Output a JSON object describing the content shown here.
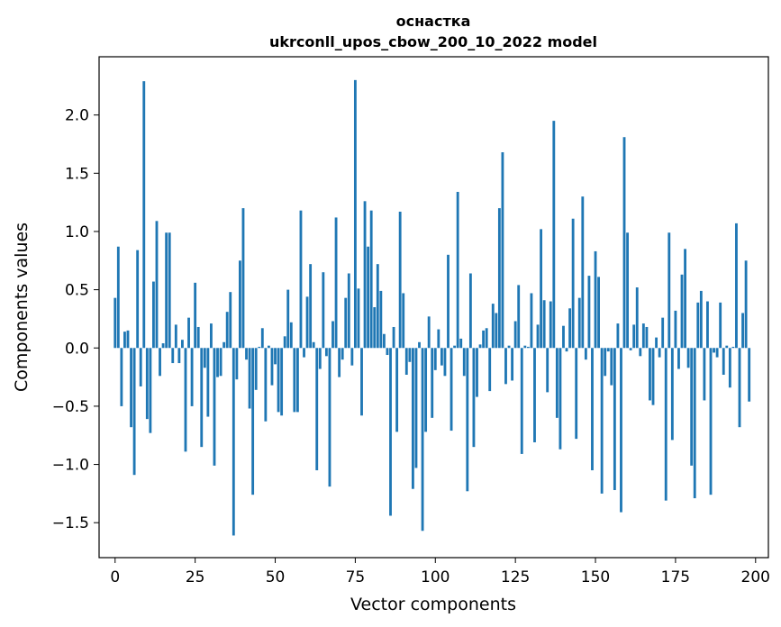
{
  "chart_data": {
    "type": "bar",
    "title": "оснастка",
    "subtitle": "ukrconll_upos_cbow_200_10_2022 model",
    "xlabel": "Vector components",
    "ylabel": "Components values",
    "xlim": [
      -5,
      204
    ],
    "ylim": [
      -1.8,
      2.5
    ],
    "xticks": [
      0,
      25,
      50,
      75,
      100,
      125,
      150,
      175,
      200
    ],
    "yticks": [
      -1.5,
      -1.0,
      -0.5,
      0.0,
      0.5,
      1.0,
      1.5,
      2.0
    ],
    "ytick_labels": [
      "−1.5",
      "−1.0",
      "−0.5",
      "0.0",
      "0.5",
      "1.0",
      "1.5",
      "2.0"
    ],
    "bar_color": "#1f77b4",
    "values": [
      0.43,
      0.87,
      -0.5,
      0.14,
      0.15,
      -0.68,
      -1.09,
      0.84,
      -0.33,
      2.29,
      -0.61,
      -0.73,
      0.57,
      1.09,
      -0.24,
      0.04,
      0.99,
      0.99,
      -0.13,
      0.2,
      -0.13,
      0.07,
      -0.89,
      0.26,
      -0.5,
      0.56,
      0.18,
      -0.85,
      -0.17,
      -0.59,
      0.21,
      -1.01,
      -0.25,
      -0.24,
      0.05,
      0.31,
      0.48,
      -1.61,
      -0.27,
      0.75,
      1.2,
      -0.1,
      -0.52,
      -1.26,
      -0.36,
      0.01,
      0.17,
      -0.63,
      0.02,
      -0.32,
      -0.14,
      -0.55,
      -0.58,
      0.1,
      0.5,
      0.22,
      -0.55,
      -0.55,
      1.18,
      -0.08,
      0.44,
      0.72,
      0.05,
      -1.05,
      -0.18,
      0.65,
      -0.07,
      -1.19,
      0.23,
      1.12,
      -0.25,
      -0.1,
      0.43,
      0.64,
      -0.15,
      2.3,
      0.51,
      -0.58,
      1.26,
      0.87,
      1.18,
      0.35,
      0.72,
      0.49,
      0.12,
      -0.06,
      -1.44,
      0.18,
      -0.72,
      1.17,
      0.47,
      -0.23,
      -0.12,
      -1.21,
      -1.03,
      0.05,
      -1.57,
      -0.72,
      0.27,
      -0.6,
      -0.19,
      0.16,
      -0.15,
      -0.24,
      0.8,
      -0.71,
      0.02,
      1.34,
      0.08,
      -0.24,
      -1.23,
      0.64,
      -0.85,
      -0.42,
      0.03,
      0.15,
      0.17,
      -0.37,
      0.38,
      0.3,
      1.2,
      1.68,
      -0.31,
      0.02,
      -0.28,
      0.23,
      0.54,
      -0.91,
      0.02,
      0.01,
      0.47,
      -0.81,
      0.2,
      1.02,
      0.41,
      -0.38,
      0.4,
      1.95,
      -0.6,
      -0.87,
      0.19,
      -0.03,
      0.34,
      1.11,
      -0.78,
      0.43,
      1.3,
      -0.1,
      0.62,
      -1.05,
      0.83,
      0.61,
      -1.25,
      -0.24,
      -0.03,
      -0.32,
      -1.22,
      0.21,
      -1.41,
      1.81,
      0.99,
      -0.02,
      0.2,
      0.52,
      -0.07,
      0.21,
      0.18,
      -0.45,
      -0.49,
      0.09,
      -0.08,
      0.26,
      -1.31,
      0.99,
      -0.79,
      0.32,
      -0.18,
      0.63,
      0.85,
      -0.17,
      -1.01,
      -1.29,
      0.39,
      0.49,
      -0.45,
      0.4,
      -1.26,
      -0.04,
      -0.08,
      0.39,
      -0.23,
      0.02,
      -0.34,
      0.01,
      1.07,
      -0.68,
      0.3,
      0.75,
      -0.46
    ]
  }
}
